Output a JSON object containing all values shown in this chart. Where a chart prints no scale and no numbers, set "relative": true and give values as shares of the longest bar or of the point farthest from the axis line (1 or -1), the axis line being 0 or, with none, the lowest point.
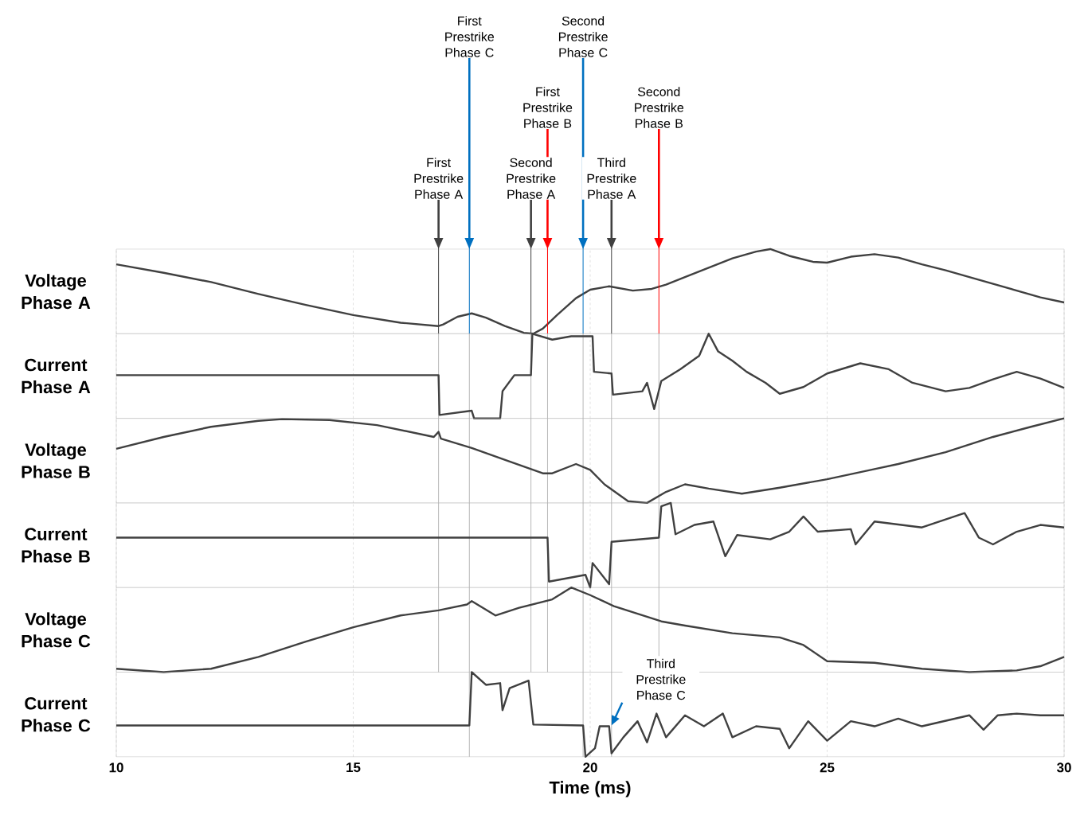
{
  "chart_data": [
    {
      "type": "line",
      "relative": true,
      "ylabel": "Voltage Phase A",
      "color": "#404040",
      "xlim": [
        10,
        30
      ],
      "xticks": [
        10,
        15,
        20,
        25,
        30
      ],
      "grid": "x",
      "tick_labels": false,
      "x": [
        10,
        11,
        12,
        13,
        14,
        15,
        16,
        16.8,
        16.9,
        17.2,
        17.5,
        17.8,
        18.2,
        18.6,
        18.8,
        19.0,
        19.3,
        19.7,
        20.0,
        20.4,
        20.9,
        21.3,
        21.6,
        22.0,
        22.5,
        23.0,
        23.5,
        23.8,
        24.2,
        24.7,
        25.0,
        25.5,
        26.0,
        26.5,
        27.0,
        27.5,
        28.0,
        28.5,
        29.0,
        29.5,
        30
      ],
      "values": [
        0.82,
        0.72,
        0.61,
        0.47,
        0.34,
        0.22,
        0.13,
        0.09,
        0.11,
        0.2,
        0.24,
        0.19,
        0.09,
        0.01,
        0,
        0.06,
        0.22,
        0.42,
        0.52,
        0.56,
        0.51,
        0.53,
        0.58,
        0.67,
        0.78,
        0.89,
        0.97,
        1,
        0.92,
        0.85,
        0.84,
        0.91,
        0.94,
        0.9,
        0.82,
        0.75,
        0.67,
        0.59,
        0.51,
        0.43,
        0.37
      ],
      "ref_lines": [
        {
          "axis": "x",
          "value": 16.8,
          "label": "First Prestrike Phase A",
          "color": "#404040"
        },
        {
          "axis": "x",
          "value": 18.75,
          "label": "Second Prestrike Phase A",
          "color": "#404040"
        },
        {
          "axis": "x",
          "value": 20.45,
          "label": "Third Prestrike Phase A",
          "color": "#404040"
        },
        {
          "axis": "x",
          "value": 19.1,
          "label": "First Prestrike Phase B",
          "color": "#ff0000"
        },
        {
          "axis": "x",
          "value": 21.45,
          "label": "Second Prestrike Phase B",
          "color": "#ff0000"
        },
        {
          "axis": "x",
          "value": 17.45,
          "label": "First Prestrike Phase C",
          "color": "#0070c0"
        },
        {
          "axis": "x",
          "value": 19.85,
          "label": "Second Prestrike Phase C",
          "color": "#0070c0"
        }
      ]
    },
    {
      "type": "line",
      "relative": true,
      "ylabel": "Current Phase A",
      "color": "#404040",
      "xlim": [
        10,
        30
      ],
      "xticks": [
        10,
        15,
        20,
        25,
        30
      ],
      "grid": "x",
      "tick_labels": false,
      "x": [
        10,
        16.8,
        16.82,
        17.5,
        17.55,
        18.1,
        18.15,
        18.4,
        18.75,
        18.78,
        19.2,
        19.6,
        20.05,
        20.08,
        20.45,
        20.48,
        21.1,
        21.2,
        21.35,
        21.5,
        21.9,
        22.3,
        22.5,
        22.7,
        23.0,
        23.3,
        23.7,
        24.0,
        24.5,
        25.0,
        25.7,
        26.3,
        26.8,
        27.5,
        28.0,
        28.5,
        29.0,
        29.5,
        30
      ],
      "values": [
        0.51,
        0.51,
        0.04,
        0.09,
        0,
        0,
        0.32,
        0.51,
        0.51,
        1,
        0.93,
        0.97,
        0.97,
        0.55,
        0.53,
        0.28,
        0.32,
        0.42,
        0.11,
        0.44,
        0.58,
        0.74,
        1,
        0.79,
        0.68,
        0.55,
        0.42,
        0.29,
        0.37,
        0.53,
        0.65,
        0.58,
        0.42,
        0.32,
        0.36,
        0.46,
        0.55,
        0.47,
        0.36
      ],
      "ref_lines": [
        {
          "axis": "x",
          "value": 16.8
        },
        {
          "axis": "x",
          "value": 18.75
        },
        {
          "axis": "x",
          "value": 20.45
        },
        {
          "axis": "x",
          "value": 19.1
        },
        {
          "axis": "x",
          "value": 21.45
        },
        {
          "axis": "x",
          "value": 17.45
        },
        {
          "axis": "x",
          "value": 19.85
        }
      ]
    },
    {
      "type": "line",
      "relative": true,
      "ylabel": "Voltage Phase B",
      "color": "#404040",
      "xlim": [
        10,
        30
      ],
      "xticks": [
        10,
        15,
        20,
        25,
        30
      ],
      "grid": "x",
      "tick_labels": false,
      "x": [
        10,
        11,
        12,
        13,
        13.5,
        14.5,
        15.5,
        16.7,
        16.8,
        16.85,
        17.5,
        18.3,
        19.0,
        19.2,
        19.7,
        20.0,
        20.3,
        20.8,
        21.2,
        21.6,
        22.0,
        22.5,
        23.2,
        24.0,
        25.0,
        26.0,
        26.5,
        27.5,
        28.5,
        29.3,
        30
      ],
      "values": [
        0.64,
        0.78,
        0.9,
        0.97,
        0.99,
        0.98,
        0.92,
        0.78,
        0.84,
        0.76,
        0.65,
        0.49,
        0.35,
        0.35,
        0.46,
        0.39,
        0.22,
        0.02,
        0,
        0.13,
        0.22,
        0.17,
        0.11,
        0.18,
        0.28,
        0.4,
        0.46,
        0.6,
        0.78,
        0.9,
        1
      ],
      "ref_lines": [
        {
          "axis": "x",
          "value": 16.8
        },
        {
          "axis": "x",
          "value": 18.75
        },
        {
          "axis": "x",
          "value": 20.45
        },
        {
          "axis": "x",
          "value": 19.1
        },
        {
          "axis": "x",
          "value": 21.45
        },
        {
          "axis": "x",
          "value": 17.45
        },
        {
          "axis": "x",
          "value": 19.85
        }
      ]
    },
    {
      "type": "line",
      "relative": true,
      "ylabel": "Current Phase B",
      "color": "#404040",
      "xlim": [
        10,
        30
      ],
      "xticks": [
        10,
        15,
        20,
        25,
        30
      ],
      "grid": "x",
      "tick_labels": false,
      "x": [
        10,
        19.1,
        19.13,
        19.9,
        20.0,
        20.05,
        20.4,
        20.45,
        21.45,
        21.5,
        21.7,
        21.8,
        22.2,
        22.6,
        22.85,
        23.1,
        23.8,
        24.2,
        24.5,
        24.8,
        25.5,
        25.6,
        26.0,
        27.0,
        27.9,
        28.2,
        28.5,
        29.0,
        29.5,
        30
      ],
      "values": [
        0.59,
        0.59,
        0.07,
        0.15,
        0,
        0.29,
        0.04,
        0.54,
        0.59,
        0.96,
        1,
        0.63,
        0.74,
        0.78,
        0.37,
        0.62,
        0.57,
        0.66,
        0.84,
        0.66,
        0.69,
        0.51,
        0.78,
        0.71,
        0.88,
        0.59,
        0.51,
        0.66,
        0.74,
        0.71
      ],
      "ref_lines": [
        {
          "axis": "x",
          "value": 16.8
        },
        {
          "axis": "x",
          "value": 18.75
        },
        {
          "axis": "x",
          "value": 20.45
        },
        {
          "axis": "x",
          "value": 19.1
        },
        {
          "axis": "x",
          "value": 21.45
        },
        {
          "axis": "x",
          "value": 17.45
        },
        {
          "axis": "x",
          "value": 19.85
        }
      ]
    },
    {
      "type": "line",
      "relative": true,
      "ylabel": "Voltage Phase C",
      "color": "#404040",
      "xlim": [
        10,
        30
      ],
      "xticks": [
        10,
        15,
        20,
        25,
        30
      ],
      "grid": "x",
      "tick_labels": false,
      "x": [
        10,
        11,
        12,
        13,
        14,
        15,
        16,
        16.8,
        17.4,
        17.5,
        18.0,
        18.5,
        19.2,
        19.6,
        20.0,
        20.5,
        21.0,
        21.5,
        22.0,
        23.0,
        24.0,
        24.5,
        25.0,
        26.0,
        27.0,
        28.0,
        29.0,
        29.5,
        30
      ],
      "values": [
        0.04,
        0,
        0.04,
        0.18,
        0.36,
        0.53,
        0.67,
        0.73,
        0.8,
        0.84,
        0.67,
        0.76,
        0.86,
        1,
        0.91,
        0.78,
        0.69,
        0.6,
        0.55,
        0.46,
        0.41,
        0.32,
        0.13,
        0.11,
        0.04,
        0,
        0.02,
        0.07,
        0.18
      ],
      "ref_lines": [
        {
          "axis": "x",
          "value": 16.8
        },
        {
          "axis": "x",
          "value": 18.75
        },
        {
          "axis": "x",
          "value": 20.45
        },
        {
          "axis": "x",
          "value": 19.1
        },
        {
          "axis": "x",
          "value": 21.45
        },
        {
          "axis": "x",
          "value": 17.45
        },
        {
          "axis": "x",
          "value": 19.85
        }
      ]
    },
    {
      "type": "line",
      "relative": true,
      "ylabel": "Current Phase C",
      "xlabel": "Time (ms)",
      "color": "#404040",
      "xlim": [
        10,
        30
      ],
      "xticks": [
        10,
        15,
        20,
        25,
        30
      ],
      "grid": "x",
      "tick_labels": "x",
      "x": [
        10,
        17.45,
        17.5,
        17.8,
        18.1,
        18.15,
        18.3,
        18.7,
        18.8,
        19.85,
        19.9,
        20.1,
        20.2,
        20.4,
        20.45,
        20.7,
        21.0,
        21.2,
        21.4,
        21.6,
        22.0,
        22.4,
        22.8,
        23.0,
        23.5,
        24.0,
        24.2,
        24.6,
        25.0,
        25.5,
        26.0,
        26.5,
        27.0,
        28.0,
        28.3,
        28.6,
        29.0,
        29.5,
        30
      ],
      "values": [
        0.37,
        0.37,
        1,
        0.85,
        0.87,
        0.55,
        0.81,
        0.9,
        0.38,
        0.37,
        0,
        0.1,
        0.36,
        0.36,
        0.04,
        0.23,
        0.42,
        0.17,
        0.51,
        0.23,
        0.49,
        0.36,
        0.51,
        0.23,
        0.36,
        0.33,
        0.1,
        0.42,
        0.19,
        0.42,
        0.36,
        0.45,
        0.36,
        0.49,
        0.32,
        0.49,
        0.51,
        0.49,
        0.49
      ],
      "ref_lines": [
        {
          "axis": "x",
          "value": 17.45
        },
        {
          "axis": "x",
          "value": 19.85
        },
        {
          "axis": "x",
          "value": 20.45
        }
      ],
      "annotations": [
        {
          "text": "Third Prestrike Phase C",
          "x": 20.45,
          "y": 0.37
        }
      ]
    }
  ]
}
